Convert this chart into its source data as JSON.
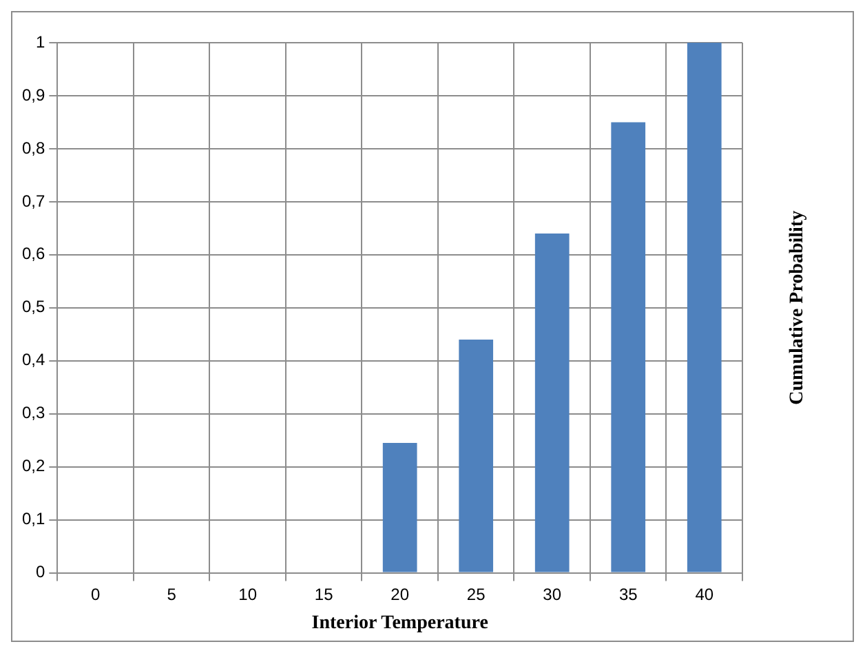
{
  "chart_data": {
    "type": "bar",
    "xlabel": "Interior Temperature",
    "ylabel": "Cumulative Probability",
    "categories": [
      "0",
      "5",
      "10",
      "15",
      "20",
      "25",
      "30",
      "35",
      "40"
    ],
    "values": [
      0,
      0,
      0,
      0,
      0.245,
      0.44,
      0.64,
      0.85,
      1
    ],
    "color": "#4f81bd",
    "ylim": [
      0,
      1
    ],
    "yticks": [
      0,
      {
        "value": 0.1,
        "label": "0,1"
      },
      {
        "value": 0.2,
        "label": "0,2"
      },
      {
        "value": 0.3,
        "label": "0,3"
      },
      {
        "value": 0.4,
        "label": "0,4"
      },
      {
        "value": 0.5,
        "label": "0,5"
      },
      {
        "value": 0.6,
        "label": "0,6"
      },
      {
        "value": 0.7,
        "label": "0,7"
      },
      {
        "value": 0.8,
        "label": "0,8"
      },
      {
        "value": 0.9,
        "label": "0,9"
      },
      1
    ],
    "grid": true
  }
}
